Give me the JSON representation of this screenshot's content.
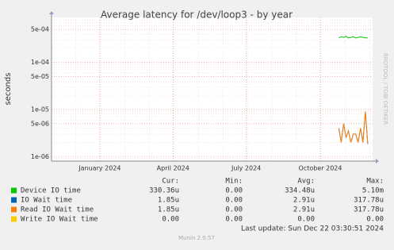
{
  "chart_data": {
    "type": "line",
    "title": "Average latency for /dev/loop3 - by year",
    "y_label": "seconds",
    "side_label": "RRDTOOL / TOBI OETIKER",
    "log_scale": true,
    "grid": true,
    "x": [
      "2024-10-24",
      "2024-10-27",
      "2024-10-30",
      "2024-11-02",
      "2024-11-05",
      "2024-11-08",
      "2024-11-11",
      "2024-11-14",
      "2024-11-17",
      "2024-11-20",
      "2024-11-23",
      "2024-11-26",
      "2024-11-29"
    ],
    "xlim": [
      "2023-11-02",
      "2024-12-05"
    ],
    "xticks": [
      {
        "value": "2024-01-01",
        "label": "January 2024"
      },
      {
        "value": "2024-04-01",
        "label": "April 2024"
      },
      {
        "value": "2024-07-01",
        "label": "July 2024"
      },
      {
        "value": "2024-10-01",
        "label": "October 2024"
      }
    ],
    "ylim": [
      8e-07,
      0.0009
    ],
    "yticks": [
      {
        "value": 1e-06,
        "label": "1e-06"
      },
      {
        "value": 5e-06,
        "label": "5e-06"
      },
      {
        "value": 1e-05,
        "label": "1e-05"
      },
      {
        "value": 5e-05,
        "label": "5e-05"
      },
      {
        "value": 0.0001,
        "label": "1e-04"
      },
      {
        "value": 0.0005,
        "label": "5e-04"
      }
    ],
    "legend_headers": [
      "Cur:",
      "Min:",
      "Avg:",
      "Max:"
    ],
    "series": [
      {
        "name": "Device IO time",
        "color": "#00cc00",
        "values": [
          0.00033,
          0.00035,
          0.00034,
          0.00036,
          0.00033,
          0.00034,
          0.00035,
          0.00033,
          0.00034,
          0.00035,
          0.00034,
          0.00033,
          0.00033
        ],
        "stats": [
          "330.36u",
          "0.00",
          "334.48u",
          "5.10m"
        ]
      },
      {
        "name": "IO Wait time",
        "color": "#0066b3",
        "values": [
          4e-06,
          2e-06,
          5e-06,
          2.5e-06,
          3.5e-06,
          2e-06,
          3e-06,
          3e-06,
          2e-06,
          4e-06,
          2e-06,
          9e-06,
          1.85e-06
        ],
        "stats": [
          "1.85u",
          "0.00",
          "2.91u",
          "317.78u"
        ]
      },
      {
        "name": "Read IO Wait time",
        "color": "#ff8000",
        "values": [
          4e-06,
          2e-06,
          5e-06,
          2.5e-06,
          3.5e-06,
          2e-06,
          3e-06,
          3e-06,
          2e-06,
          4e-06,
          2e-06,
          9e-06,
          1.85e-06
        ],
        "stats": [
          "1.85u",
          "0.00",
          "2.91u",
          "317.78u"
        ]
      },
      {
        "name": "Write IO Wait time",
        "color": "#ffcc00",
        "values": [
          null,
          null,
          null,
          null,
          null,
          null,
          null,
          null,
          null,
          null,
          null,
          null,
          null
        ],
        "stats": [
          "0.00",
          "0.00",
          "0.00",
          "0.00"
        ]
      }
    ],
    "last_update": "Last update: Sun Dec 22 03:30:51 2024",
    "footer": "Munin 2.0.57"
  }
}
